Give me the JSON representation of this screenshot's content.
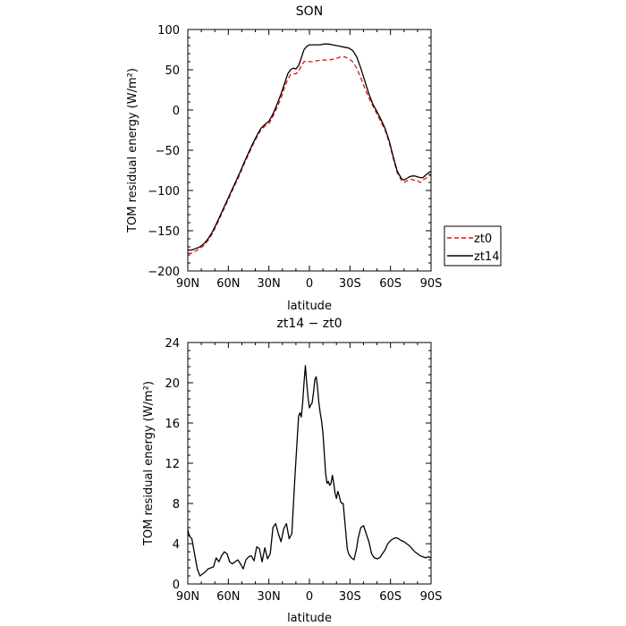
{
  "chart_data": [
    {
      "type": "line",
      "title": "SON",
      "xlabel": "latitude",
      "ylabel": "TOM residual energy (W/m²)",
      "xlim": [
        90,
        -90
      ],
      "ylim": [
        -200,
        100
      ],
      "xticks": [
        90,
        60,
        30,
        0,
        -30,
        -60,
        -90
      ],
      "xtick_labels": [
        "90N",
        "60N",
        "30N",
        "0",
        "30S",
        "60S",
        "90S"
      ],
      "yticks": [
        -200,
        -150,
        -100,
        -50,
        0,
        50,
        100
      ],
      "ytick_labels": [
        "−200",
        "−150",
        "−100",
        "−50",
        "0",
        "50",
        "100"
      ],
      "legend_position": "right",
      "series": [
        {
          "name": "zt0",
          "color": "#e01010",
          "dash": "dashed",
          "x": [
            90,
            87,
            84,
            81,
            78,
            75,
            72,
            69,
            66,
            63,
            60,
            57,
            54,
            51,
            48,
            45,
            42,
            39,
            36,
            33,
            30,
            27,
            24,
            21,
            18,
            16,
            14,
            12,
            10,
            8,
            6,
            4,
            2,
            0,
            -2,
            -5,
            -8,
            -11,
            -14,
            -17,
            -20,
            -23,
            -26,
            -29,
            -32,
            -35,
            -38,
            -41,
            -44,
            -47,
            -50,
            -53,
            -56,
            -59,
            -62,
            -65,
            -68,
            -70,
            -72,
            -74,
            -76,
            -78,
            -80,
            -82,
            -84,
            -86,
            -88,
            -90
          ],
          "y": [
            -178,
            -178,
            -175,
            -172,
            -168,
            -162,
            -154,
            -144,
            -133,
            -122,
            -111,
            -100,
            -89,
            -78,
            -66,
            -55,
            -44,
            -34,
            -25,
            -20,
            -17,
            -8,
            3,
            15,
            30,
            38,
            44,
            45,
            45,
            48,
            55,
            60,
            61,
            60,
            60,
            61,
            62,
            62,
            62,
            63,
            64,
            66,
            66,
            64,
            60,
            52,
            40,
            27,
            15,
            5,
            -5,
            -15,
            -25,
            -40,
            -60,
            -78,
            -87,
            -90,
            -88,
            -87,
            -86,
            -88,
            -88,
            -90,
            -87,
            -85,
            -83,
            -80
          ]
        },
        {
          "name": "zt14",
          "color": "#000000",
          "dash": "solid",
          "x": [
            90,
            87,
            84,
            81,
            78,
            75,
            72,
            69,
            66,
            63,
            60,
            57,
            54,
            51,
            48,
            45,
            42,
            39,
            36,
            33,
            30,
            27,
            24,
            21,
            18,
            16,
            14,
            12,
            10,
            8,
            6,
            4,
            2,
            0,
            -2,
            -5,
            -8,
            -11,
            -14,
            -17,
            -20,
            -23,
            -26,
            -29,
            -32,
            -35,
            -38,
            -41,
            -44,
            -47,
            -50,
            -53,
            -56,
            -59,
            -62,
            -65,
            -68,
            -70,
            -72,
            -74,
            -76,
            -78,
            -80,
            -82,
            -84,
            -86,
            -88,
            -90
          ],
          "y": [
            -174,
            -174,
            -172,
            -170,
            -166,
            -160,
            -152,
            -142,
            -131,
            -120,
            -109,
            -98,
            -87,
            -76,
            -64,
            -53,
            -42,
            -32,
            -23,
            -18,
            -14,
            -5,
            7,
            20,
            35,
            45,
            50,
            52,
            51,
            55,
            65,
            75,
            79,
            81,
            81,
            81,
            81,
            82,
            82,
            81,
            80,
            79,
            78,
            77,
            74,
            66,
            52,
            36,
            20,
            7,
            -2,
            -12,
            -23,
            -38,
            -58,
            -76,
            -85,
            -87,
            -85,
            -83,
            -82,
            -82,
            -83,
            -84,
            -84,
            -81,
            -78,
            -76
          ]
        }
      ]
    },
    {
      "type": "line",
      "title": "zt14 − zt0",
      "xlabel": "latitude",
      "ylabel": "TOM residual energy (W/m²)",
      "xlim": [
        90,
        -90
      ],
      "ylim": [
        0,
        24
      ],
      "xticks": [
        90,
        60,
        30,
        0,
        -30,
        -60,
        -90
      ],
      "xtick_labels": [
        "90N",
        "60N",
        "30N",
        "0",
        "30S",
        "60S",
        "90S"
      ],
      "yticks": [
        0,
        4,
        8,
        12,
        16,
        20,
        24
      ],
      "ytick_labels": [
        "0",
        "4",
        "8",
        "12",
        "16",
        "20",
        "24"
      ],
      "series": [
        {
          "color": "#000000",
          "dash": "solid",
          "x": [
            90,
            89,
            87,
            85,
            83,
            81,
            79,
            77,
            75,
            73,
            71,
            69,
            67,
            65,
            63,
            61,
            59,
            57,
            55,
            53,
            51,
            49,
            47,
            45,
            43,
            41,
            39,
            37,
            35,
            33,
            31,
            29,
            27,
            25,
            23,
            21,
            19,
            17,
            15,
            13,
            11,
            9,
            8,
            7,
            6,
            5,
            4,
            3,
            2,
            1,
            0,
            -1,
            -2,
            -3,
            -4,
            -5,
            -6,
            -7,
            -8,
            -9,
            -10,
            -11,
            -12,
            -13,
            -14,
            -15,
            -16,
            -17,
            -18,
            -19,
            -20,
            -21,
            -22,
            -23,
            -24,
            -25,
            -26,
            -27,
            -28,
            -29,
            -30,
            -31,
            -32,
            -33,
            -34,
            -35,
            -36,
            -38,
            -40,
            -42,
            -44,
            -46,
            -48,
            -50,
            -52,
            -54,
            -56,
            -58,
            -60,
            -62,
            -64,
            -66,
            -68,
            -70,
            -72,
            -74,
            -76,
            -78,
            -80,
            -82,
            -84,
            -86,
            -88,
            -90
          ],
          "y": [
            5.4,
            4.8,
            4.5,
            3.0,
            1.5,
            0.8,
            1.0,
            1.2,
            1.5,
            1.6,
            1.7,
            2.6,
            2.2,
            2.8,
            3.2,
            3.0,
            2.2,
            2.0,
            2.2,
            2.4,
            2.0,
            1.5,
            2.4,
            2.7,
            2.8,
            2.3,
            3.7,
            3.5,
            2.2,
            3.6,
            2.5,
            3.0,
            5.6,
            6.0,
            5.0,
            4.2,
            5.5,
            6.0,
            4.5,
            5.0,
            10.0,
            14.5,
            16.7,
            17.0,
            16.6,
            18.0,
            20.0,
            21.7,
            20.0,
            18.5,
            17.5,
            17.8,
            18.0,
            19.0,
            20.3,
            20.6,
            19.5,
            18.0,
            17.0,
            16.2,
            15.0,
            13.0,
            11.0,
            10.0,
            10.2,
            9.8,
            10.0,
            10.8,
            10.0,
            9.0,
            8.5,
            9.2,
            8.8,
            8.2,
            8.0,
            8.0,
            6.5,
            5.0,
            3.5,
            3.0,
            2.8,
            2.6,
            2.5,
            2.4,
            3.0,
            3.6,
            4.5,
            5.6,
            5.8,
            5.0,
            4.2,
            3.0,
            2.6,
            2.5,
            2.6,
            3.0,
            3.4,
            4.0,
            4.3,
            4.5,
            4.6,
            4.5,
            4.3,
            4.2,
            4.0,
            3.8,
            3.5,
            3.2,
            3.0,
            2.8,
            2.7,
            2.6,
            2.7,
            2.6
          ]
        }
      ]
    }
  ]
}
